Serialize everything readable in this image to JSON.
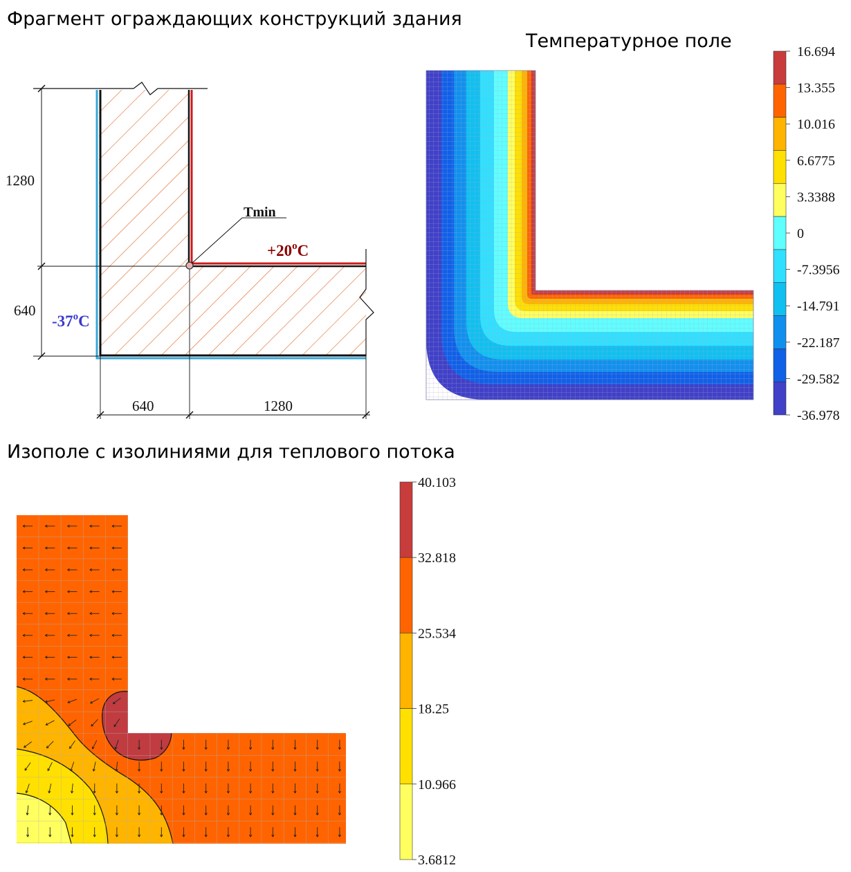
{
  "titles": {
    "fragment": "Фрагмент ограждающих конструкций здания",
    "temperature": "Температурное поле",
    "heat_flux": "Изополе с изолиниями для теплового потока"
  },
  "drawing": {
    "dim_vertical_top": "1280",
    "dim_vertical_bottom": "640",
    "dim_horizontal_left": "640",
    "dim_horizontal_right": "1280",
    "tmin_label": "Tmin",
    "inside_temp": "+20",
    "outside_temp": "-37",
    "temp_unit_sup": "o",
    "temp_unit": "C",
    "colors": {
      "inside": "#8b0000",
      "outside": "#3a3acc",
      "hatch": "#e07030",
      "wall_edge_outer": "#35a8d8",
      "wall_edge_inner": "#d01818"
    }
  },
  "temperature_legend": {
    "labels": [
      "16.694",
      "13.355",
      "10.016",
      "6.6775",
      "3.3388",
      "0",
      "-7.3956",
      "-14.791",
      "-22.187",
      "-29.582",
      "-36.978"
    ],
    "colors": [
      "#c83c3c",
      "#ff6400",
      "#ffb400",
      "#ffe000",
      "#ffff60",
      "#60ffff",
      "#30e0ff",
      "#10c0f0",
      "#1090ee",
      "#1060e8",
      "#4040c8"
    ]
  },
  "flux_legend": {
    "labels": [
      "40.103",
      "32.818",
      "25.534",
      "18.25",
      "10.966",
      "3.6812"
    ],
    "colors": [
      "#c83c3c",
      "#ff6400",
      "#ffb400",
      "#ffe000",
      "#ffff60"
    ]
  }
}
